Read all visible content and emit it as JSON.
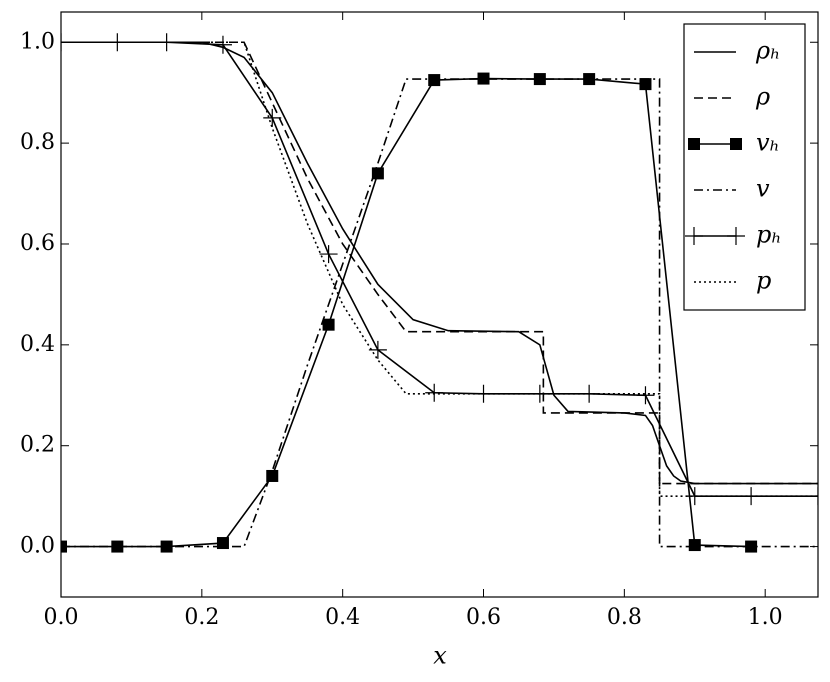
{
  "chart_data": {
    "type": "line",
    "xlabel": "x",
    "xlim": [
      0,
      1.075
    ],
    "ylim": [
      -0.1,
      1.06
    ],
    "xticks": [
      {
        "value": 0,
        "label": "0.0"
      },
      0.2,
      0.4,
      0.6,
      0.8,
      {
        "value": 1,
        "label": "1.0"
      }
    ],
    "yticks": [
      {
        "value": 0,
        "label": "0.0"
      },
      0.2,
      0.4,
      0.6,
      0.8,
      {
        "value": 1,
        "label": "1.0"
      }
    ],
    "legend": "upper right",
    "series": [
      {
        "name": "ρₕ",
        "color": "#000000",
        "linestyle": "solid",
        "marker": "none",
        "x": [
          0,
          0.2,
          0.23,
          0.26,
          0.3,
          0.35,
          0.4,
          0.45,
          0.5,
          0.55,
          0.65,
          0.68,
          0.7,
          0.72,
          0.8,
          0.83,
          0.84,
          0.85,
          0.86,
          0.87,
          0.88,
          0.9,
          1.075
        ],
        "values": [
          1,
          1,
          0.99,
          0.97,
          0.9,
          0.76,
          0.63,
          0.52,
          0.45,
          0.428,
          0.426,
          0.4,
          0.3,
          0.268,
          0.265,
          0.26,
          0.24,
          0.2,
          0.16,
          0.14,
          0.13,
          0.125,
          0.125
        ]
      },
      {
        "name": "ρ",
        "color": "#000000",
        "linestyle": "dashed",
        "marker": "none",
        "x": [
          0,
          0.26,
          0.3,
          0.35,
          0.4,
          0.45,
          0.49,
          0.685,
          0.685,
          0.85,
          0.85,
          1.075
        ],
        "values": [
          1,
          1,
          0.88,
          0.73,
          0.6,
          0.5,
          0.426,
          0.426,
          0.265,
          0.265,
          0.125,
          0.125
        ]
      },
      {
        "name": "vₕ",
        "color": "#000000",
        "linestyle": "solid",
        "marker": "square",
        "x": [
          0,
          0.08,
          0.15,
          0.23,
          0.3,
          0.38,
          0.45,
          0.53,
          0.6,
          0.68,
          0.75,
          0.83,
          0.9,
          0.98
        ],
        "values": [
          0,
          0,
          0,
          0.007,
          0.14,
          0.44,
          0.74,
          0.925,
          0.928,
          0.927,
          0.927,
          0.917,
          0.003,
          0
        ]
      },
      {
        "name": "v",
        "color": "#000000",
        "linestyle": "dashdot",
        "marker": "none",
        "x": [
          0,
          0.26,
          0.3,
          0.35,
          0.4,
          0.45,
          0.49,
          0.85,
          0.85,
          1.075
        ],
        "values": [
          0,
          0,
          0.15,
          0.36,
          0.56,
          0.76,
          0.927,
          0.927,
          0,
          0
        ]
      },
      {
        "name": "pₕ",
        "color": "#000000",
        "linestyle": "solid",
        "marker": "plus",
        "x": [
          0,
          0.08,
          0.15,
          0.23,
          0.3,
          0.38,
          0.45,
          0.53,
          0.6,
          0.68,
          0.75,
          0.83,
          0.9,
          0.98,
          1.075
        ],
        "values": [
          1,
          1,
          1,
          0.995,
          0.85,
          0.58,
          0.39,
          0.305,
          0.303,
          0.303,
          0.303,
          0.3,
          0.1,
          0.1,
          0.1
        ]
      },
      {
        "name": "p",
        "color": "#000000",
        "linestyle": "dotted",
        "marker": "none",
        "x": [
          0,
          0.26,
          0.3,
          0.35,
          0.4,
          0.45,
          0.49,
          0.85,
          0.85,
          1.075
        ],
        "values": [
          1,
          1,
          0.83,
          0.64,
          0.48,
          0.37,
          0.303,
          0.303,
          0.1,
          0.1
        ]
      }
    ]
  }
}
